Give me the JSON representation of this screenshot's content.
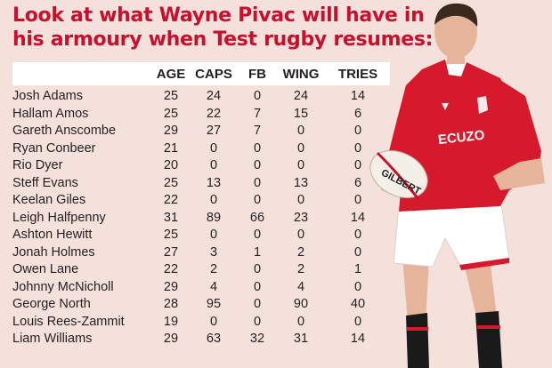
{
  "headline": {
    "line1": "Look at what Wayne Pivac will have in",
    "line2": "his armoury when Test rugby resumes:"
  },
  "table": {
    "columns": [
      "AGE",
      "CAPS",
      "FB",
      "WING",
      "TRIES"
    ],
    "rows": [
      [
        "Josh Adams",
        "25",
        "24",
        "0",
        "24",
        "14"
      ],
      [
        "Hallam Amos",
        "25",
        "22",
        "7",
        "15",
        "6"
      ],
      [
        "Gareth Anscombe",
        "29",
        "27",
        "7",
        "0",
        "0"
      ],
      [
        "Ryan Conbeer",
        "21",
        "0",
        "0",
        "0",
        "0"
      ],
      [
        "Rio Dyer",
        "20",
        "0",
        "0",
        "0",
        "0"
      ],
      [
        "Steff Evans",
        "25",
        "13",
        "0",
        "13",
        "6"
      ],
      [
        "Keelan Giles",
        "22",
        "0",
        "0",
        "0",
        "0"
      ],
      [
        "Leigh Halfpenny",
        "31",
        "89",
        "66",
        "23",
        "14"
      ],
      [
        "Ashton Hewitt",
        "25",
        "0",
        "0",
        "0",
        "0"
      ],
      [
        "Jonah Holmes",
        "27",
        "3",
        "1",
        "2",
        "0"
      ],
      [
        "Owen Lane",
        "22",
        "2",
        "0",
        "2",
        "1"
      ],
      [
        "Johnny McNicholl",
        "29",
        "4",
        "0",
        "4",
        "0"
      ],
      [
        "George North",
        "28",
        "95",
        "0",
        "90",
        "40"
      ],
      [
        "Louis Rees-Zammit",
        "19",
        "0",
        "0",
        "0",
        "0"
      ],
      [
        "Liam Williams",
        "29",
        "63",
        "32",
        "31",
        "14"
      ]
    ]
  },
  "photo": {
    "shirt_sponsor": "ECUZO",
    "ball_brand": "GILBERT",
    "colors": {
      "shirt": "#d7192d",
      "shorts": "#ffffff",
      "socks": "#1a1a1a",
      "headline": "#c8102e",
      "background": "#f5e1dc"
    }
  }
}
